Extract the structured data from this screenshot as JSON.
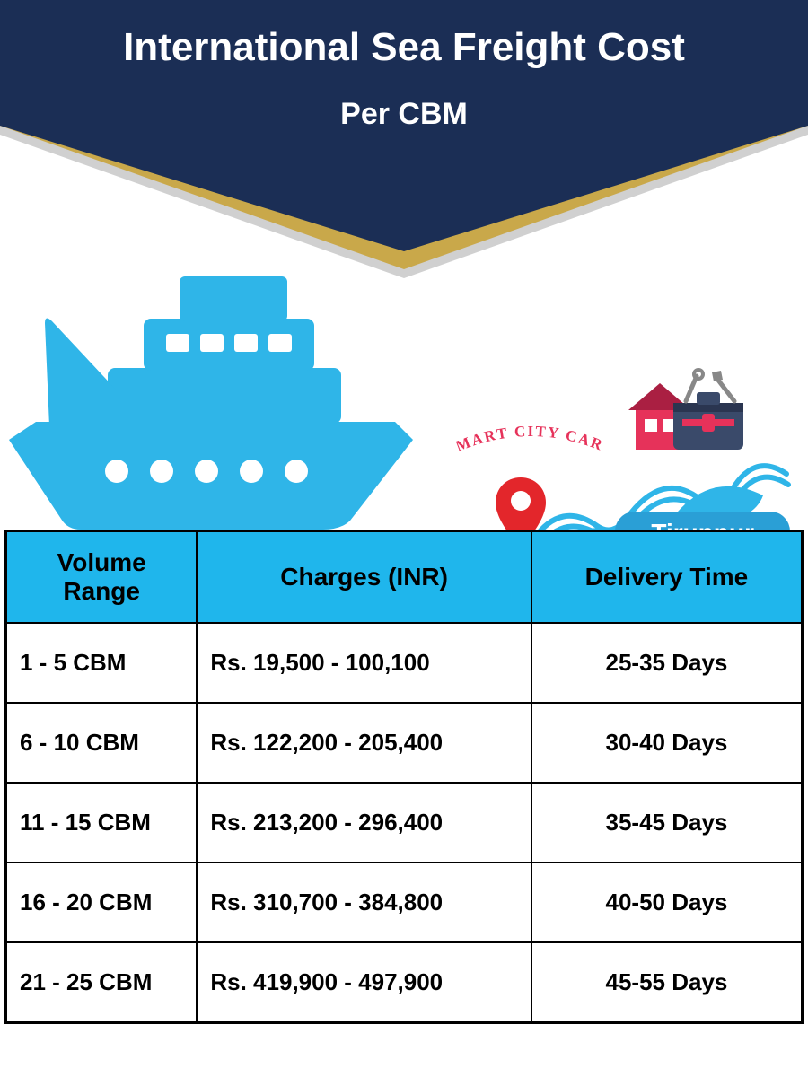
{
  "header": {
    "title": "International Sea Freight Cost",
    "subtitle": "Per CBM"
  },
  "branding": {
    "logo_text": "SMART CITY CARE",
    "house_fill": "#e6325a",
    "house_roof": "#aa1f42",
    "toolbox_fill": "#3a4a6a",
    "tool_color": "#888888"
  },
  "location": {
    "label": "Tiruppur",
    "pin_color": "#e3262b",
    "pill_bg": "#2a9fd6"
  },
  "colors": {
    "navy": "#1b2e55",
    "gold": "#c9a84a",
    "gray_banner": "#d0d0d0",
    "ship": "#2fb5e8",
    "wave": "#2fb5e8",
    "table_header_bg": "#1fb6ec",
    "table_border": "#000000",
    "text_white": "#ffffff",
    "text_black": "#000000"
  },
  "table": {
    "columns": [
      "Volume Range",
      "Charges (INR)",
      "Delivery Time"
    ],
    "col_widths_pct": [
      24,
      42,
      34
    ],
    "header_fontsize": 28,
    "cell_fontsize": 26,
    "rows": [
      {
        "volume": "1 - 5 CBM",
        "charges": "Rs. 19,500 - 100,100",
        "delivery": "25-35 Days"
      },
      {
        "volume": "6 - 10 CBM",
        "charges": "Rs. 122,200 - 205,400",
        "delivery": "30-40 Days"
      },
      {
        "volume": "11 - 15 CBM",
        "charges": "Rs. 213,200 - 296,400",
        "delivery": "35-45 Days"
      },
      {
        "volume": "16 - 20 CBM",
        "charges": "Rs. 310,700 - 384,800",
        "delivery": "40-50 Days"
      },
      {
        "volume": "21 - 25 CBM",
        "charges": "Rs. 419,900 - 497,900",
        "delivery": "45-55 Days"
      }
    ]
  }
}
